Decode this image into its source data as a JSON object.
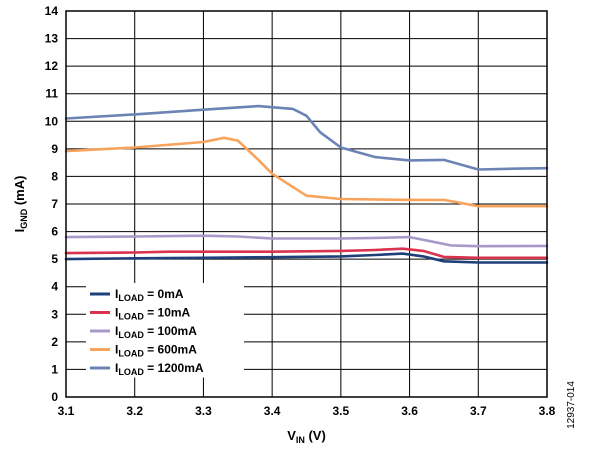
{
  "figure_id": "12937-014",
  "chart_data": {
    "type": "line",
    "xlabel": {
      "main": "V",
      "sub": "IN",
      "unit": " (V)"
    },
    "ylabel": {
      "main": "I",
      "sub": "GND",
      "unit": " (mA)"
    },
    "xlim": [
      3.1,
      3.8
    ],
    "ylim": [
      0,
      14
    ],
    "xticks": [
      "3.1",
      "3.2",
      "3.3",
      "3.4",
      "3.5",
      "3.6",
      "3.7",
      "3.8"
    ],
    "yticks": [
      "0",
      "1",
      "2",
      "3",
      "4",
      "5",
      "6",
      "7",
      "8",
      "9",
      "10",
      "11",
      "12",
      "13",
      "14"
    ],
    "grid": true,
    "legend_position": "bottom-left",
    "series": [
      {
        "prefix": "I",
        "sub": "LOAD",
        "suffix": " = 0mA",
        "color": "#1f3f7a",
        "x": [
          3.1,
          3.2,
          3.3,
          3.4,
          3.5,
          3.55,
          3.59,
          3.62,
          3.65,
          3.7,
          3.8
        ],
        "y": [
          5.0,
          5.03,
          5.05,
          5.07,
          5.1,
          5.15,
          5.2,
          5.1,
          4.92,
          4.88,
          4.88
        ]
      },
      {
        "prefix": "I",
        "sub": "LOAD",
        "suffix": " = 10mA",
        "color": "#d9334d",
        "x": [
          3.1,
          3.2,
          3.25,
          3.3,
          3.4,
          3.5,
          3.55,
          3.59,
          3.62,
          3.65,
          3.7,
          3.8
        ],
        "y": [
          5.22,
          5.24,
          5.27,
          5.27,
          5.27,
          5.3,
          5.33,
          5.38,
          5.3,
          5.08,
          5.05,
          5.05
        ]
      },
      {
        "prefix": "I",
        "sub": "LOAD",
        "suffix": " = 100mA",
        "color": "#a79ac9",
        "x": [
          3.1,
          3.2,
          3.3,
          3.35,
          3.4,
          3.5,
          3.55,
          3.6,
          3.63,
          3.66,
          3.7,
          3.8
        ],
        "y": [
          5.8,
          5.82,
          5.85,
          5.82,
          5.75,
          5.75,
          5.77,
          5.8,
          5.65,
          5.5,
          5.47,
          5.48
        ]
      },
      {
        "prefix": "I",
        "sub": "LOAD",
        "suffix": " = 600mA",
        "color": "#f7a35c",
        "x": [
          3.1,
          3.2,
          3.3,
          3.33,
          3.35,
          3.38,
          3.4,
          3.45,
          3.5,
          3.6,
          3.65,
          3.7,
          3.8
        ],
        "y": [
          8.92,
          9.05,
          9.25,
          9.4,
          9.3,
          8.6,
          8.1,
          7.3,
          7.18,
          7.15,
          7.15,
          6.92,
          6.92
        ]
      },
      {
        "prefix": "I",
        "sub": "LOAD",
        "suffix": " = 1200mA",
        "color": "#6b84b5",
        "x": [
          3.1,
          3.2,
          3.3,
          3.38,
          3.43,
          3.45,
          3.47,
          3.5,
          3.55,
          3.6,
          3.65,
          3.7,
          3.75,
          3.8
        ],
        "y": [
          10.1,
          10.25,
          10.42,
          10.55,
          10.45,
          10.2,
          9.6,
          9.05,
          8.7,
          8.58,
          8.6,
          8.25,
          8.28,
          8.3
        ]
      }
    ]
  }
}
